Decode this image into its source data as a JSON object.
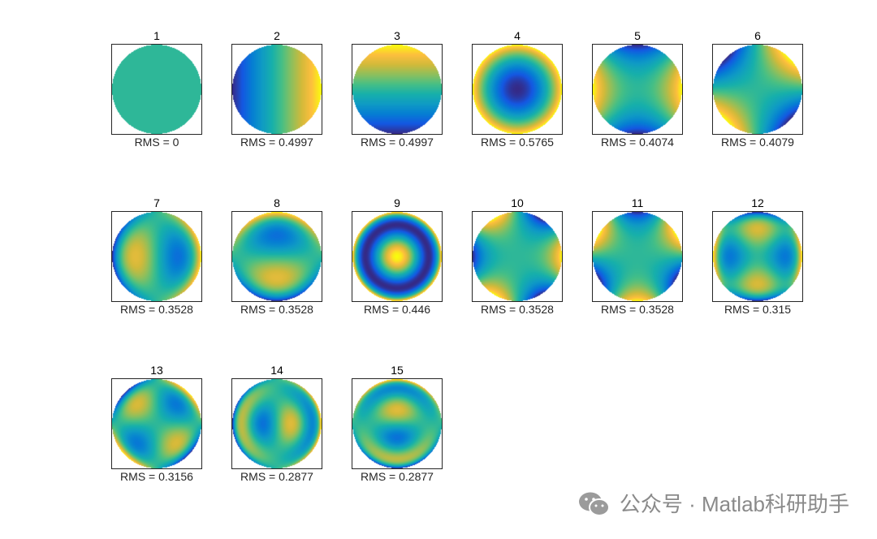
{
  "chart_data": {
    "type": "heatmap",
    "grid": [
      3,
      6
    ],
    "colormap": "parula",
    "rms_prefix": "RMS = ",
    "panels": [
      {
        "title": "1",
        "rms": "0"
      },
      {
        "title": "2",
        "rms": "0.4997"
      },
      {
        "title": "3",
        "rms": "0.4997"
      },
      {
        "title": "4",
        "rms": "0.5765"
      },
      {
        "title": "5",
        "rms": "0.4074"
      },
      {
        "title": "6",
        "rms": "0.4079"
      },
      {
        "title": "7",
        "rms": "0.3528"
      },
      {
        "title": "8",
        "rms": "0.3528"
      },
      {
        "title": "9",
        "rms": "0.446"
      },
      {
        "title": "10",
        "rms": "0.3528"
      },
      {
        "title": "11",
        "rms": "0.3528"
      },
      {
        "title": "12",
        "rms": "0.315"
      },
      {
        "title": "13",
        "rms": "0.3156"
      },
      {
        "title": "14",
        "rms": "0.2877"
      },
      {
        "title": "15",
        "rms": "0.2877"
      }
    ]
  },
  "watermark": {
    "text": "公众号 · Matlab科研助手",
    "icon": "wechat-icon"
  }
}
